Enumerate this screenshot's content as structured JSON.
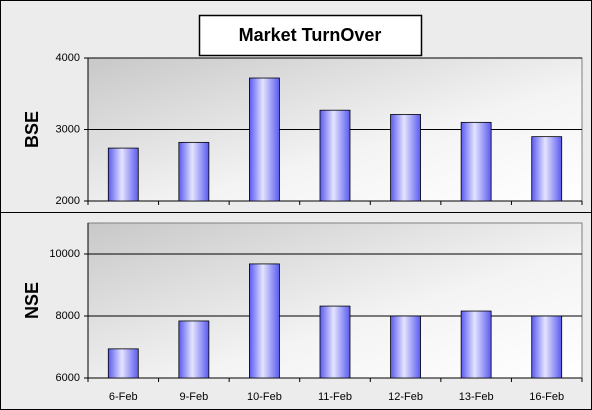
{
  "chart_data": [
    {
      "type": "bar",
      "title": "Market TurnOver",
      "ylabel": "BSE",
      "values": [
        2740,
        2820,
        3720,
        3270,
        3210,
        3100,
        2900
      ],
      "color": "#5a5af0",
      "ylim": [
        2000,
        4000
      ],
      "yticks": [
        2000,
        3000,
        4000
      ],
      "grid": true
    },
    {
      "type": "bar",
      "ylabel": "NSE",
      "categories": [
        "6-Feb",
        "9-Feb",
        "10-Feb",
        "11-Feb",
        "12-Feb",
        "13-Feb",
        "16-Feb"
      ],
      "values": [
        6940,
        7840,
        9680,
        8320,
        8000,
        8160,
        8000
      ],
      "color": "#5a5af0",
      "ylim": [
        6000,
        11000
      ],
      "yticks": [
        6000,
        8000,
        10000
      ],
      "grid": true
    }
  ]
}
